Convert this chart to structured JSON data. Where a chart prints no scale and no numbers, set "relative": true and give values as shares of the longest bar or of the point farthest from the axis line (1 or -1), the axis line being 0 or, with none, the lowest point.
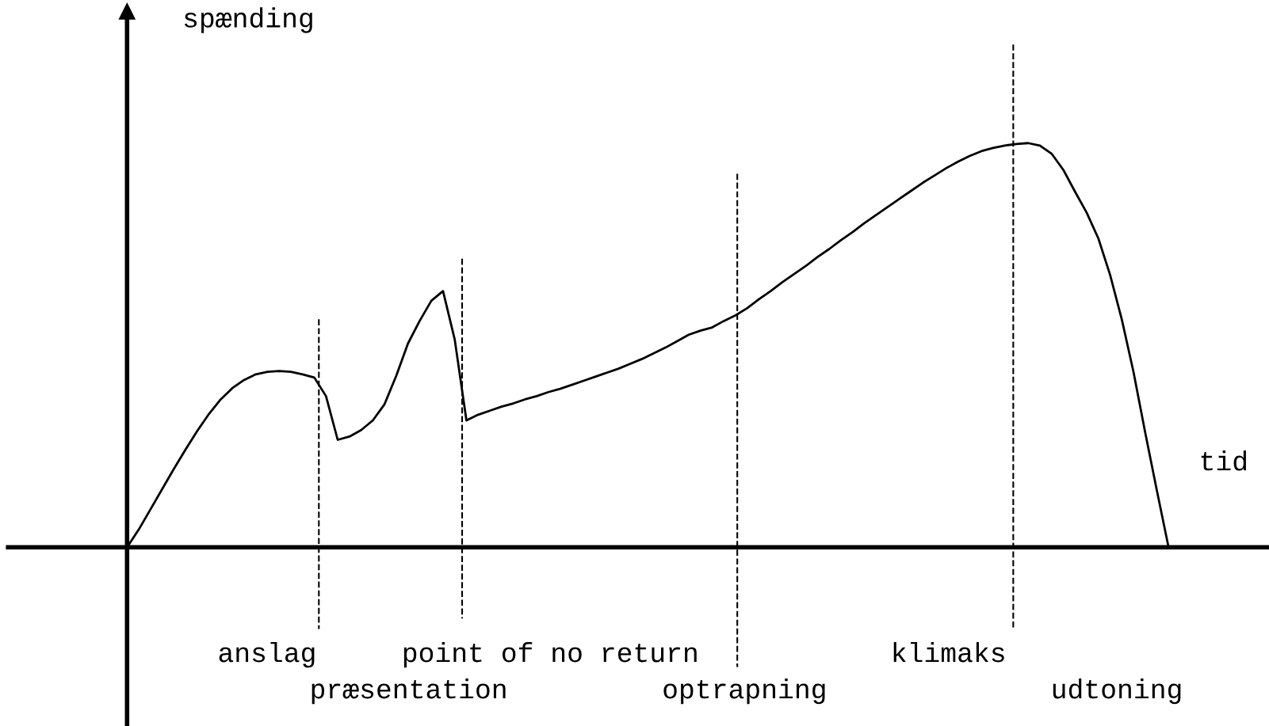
{
  "chart_data": {
    "type": "line",
    "relative": true,
    "xlabel": "tid",
    "ylabel": "spænding",
    "categories": [
      null,
      null,
      null,
      null,
      null,
      null,
      null,
      null,
      null,
      null,
      null,
      null,
      null,
      null,
      null,
      null,
      null,
      null,
      null,
      null,
      null,
      null,
      null,
      null,
      null,
      null,
      null,
      null,
      null,
      null,
      null,
      null,
      null,
      null,
      null,
      null,
      null,
      null,
      null,
      null,
      null,
      null,
      null,
      null,
      null,
      null,
      null,
      null,
      null,
      null,
      null,
      null,
      null,
      null,
      null,
      null,
      null,
      null,
      null,
      null,
      null,
      null,
      null,
      null,
      null,
      null,
      null,
      null,
      null,
      null,
      null,
      null,
      null,
      null,
      null,
      null,
      null,
      null,
      null,
      null,
      null,
      null,
      null,
      null,
      null,
      null,
      null,
      null,
      null,
      null
    ],
    "series": [
      {
        "color": "#000000",
        "values": [
          0,
          0.044,
          0.094,
          0.144,
          0.194,
          0.242,
          0.288,
          0.33,
          0.366,
          0.394,
          0.414,
          0.428,
          0.434,
          0.436,
          0.434,
          0.428,
          0.42,
          0.374,
          0.266,
          0.274,
          0.29,
          0.314,
          0.354,
          0.424,
          0.504,
          0.56,
          0.61,
          0.634,
          0.514,
          0.314,
          0.328,
          0.338,
          0.348,
          0.356,
          0.366,
          0.374,
          0.384,
          0.392,
          0.402,
          0.412,
          0.422,
          0.432,
          0.442,
          0.454,
          0.466,
          0.48,
          0.494,
          0.51,
          0.526,
          0.536,
          0.544,
          0.56,
          0.574,
          0.592,
          0.614,
          0.634,
          0.656,
          0.676,
          0.696,
          0.718,
          0.738,
          0.76,
          0.78,
          0.802,
          0.822,
          0.842,
          0.862,
          0.882,
          0.902,
          0.92,
          0.938,
          0.954,
          0.968,
          0.98,
          0.988,
          0.994,
          0.998,
          1.0,
          0.994,
          0.974,
          0.934,
          0.88,
          0.828,
          0.764,
          0.674,
          0.564,
          0.434,
          0.284,
          0.14,
          0
        ]
      }
    ],
    "annotations": [
      "anslag",
      "præsentation",
      "point of no return",
      "optrapning",
      "klimaks",
      "udtoning"
    ],
    "legend": false,
    "marker": "none",
    "line_style": "solid"
  }
}
